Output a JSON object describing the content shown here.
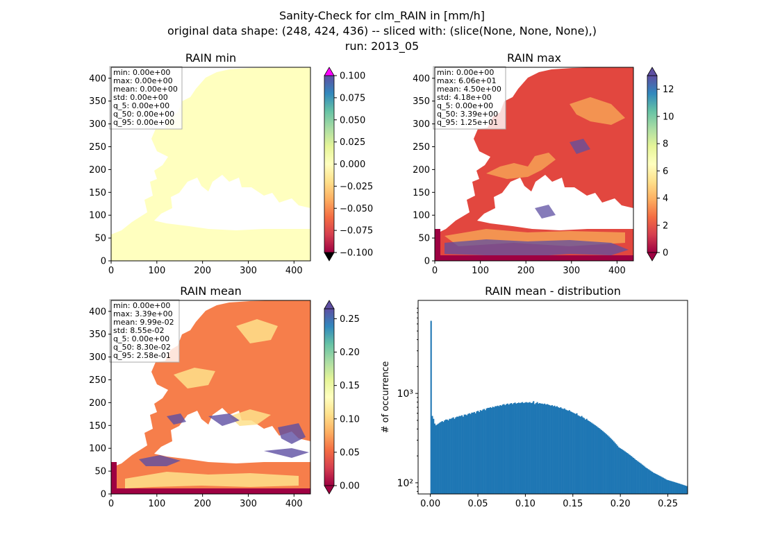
{
  "figure": {
    "suptitle_lines": [
      "Sanity-Check for clm_RAIN in [mm/h]",
      "original data shape: (248, 424, 436) -- sliced with: (slice(None, None, None),)",
      "run: 2013_05"
    ]
  },
  "chart_data": [
    {
      "type": "heatmap",
      "title": "RAIN min",
      "xlim": [
        0,
        436
      ],
      "ylim": [
        0,
        424
      ],
      "x_ticks": [
        "0",
        "100",
        "200",
        "300",
        "400"
      ],
      "y_ticks": [
        "0",
        "50",
        "100",
        "150",
        "200",
        "250",
        "300",
        "350",
        "400"
      ],
      "colormap": "Spectral",
      "colorbar": {
        "min": -0.1,
        "max": 0.1,
        "ticks": [
          "−0.100",
          "−0.075",
          "−0.050",
          "−0.025",
          "0.000",
          "0.025",
          "0.050",
          "0.075",
          "0.100"
        ],
        "extend_max_color": "#ff00ff",
        "extend_min_color": "#000000"
      },
      "stats": [
        "min: 0.00e+00",
        "max: 0.00e+00",
        "mean: 0.00e+00",
        "std: 0.00e+00",
        "q_5: 0.00e+00",
        "q_50: 0.00e+00",
        "q_95: 0.00e+00"
      ]
    },
    {
      "type": "heatmap",
      "title": "RAIN max",
      "xlim": [
        0,
        436
      ],
      "ylim": [
        0,
        424
      ],
      "x_ticks": [
        "0",
        "100",
        "200",
        "300",
        "400"
      ],
      "y_ticks": [
        "0",
        "50",
        "100",
        "150",
        "200",
        "250",
        "300",
        "350",
        "400"
      ],
      "colormap": "Spectral",
      "colorbar": {
        "min": 0,
        "max": 13,
        "ticks": [
          "0",
          "2",
          "4",
          "6",
          "8",
          "10",
          "12"
        ]
      },
      "stats": [
        "min: 0.00e+00",
        "max: 6.06e+01",
        "mean: 4.50e+00",
        "std: 4.18e+00",
        "q_5: 0.00e+00",
        "q_50: 3.39e+00",
        "q_95: 1.25e+01"
      ]
    },
    {
      "type": "heatmap",
      "title": "RAIN mean",
      "xlim": [
        0,
        436
      ],
      "ylim": [
        0,
        424
      ],
      "x_ticks": [
        "0",
        "100",
        "200",
        "300",
        "400"
      ],
      "y_ticks": [
        "0",
        "50",
        "100",
        "150",
        "200",
        "250",
        "300",
        "350",
        "400"
      ],
      "colormap": "Spectral",
      "colorbar": {
        "min": 0,
        "max": 0.265,
        "ticks": [
          "0.00",
          "0.05",
          "0.10",
          "0.15",
          "0.20",
          "0.25"
        ]
      },
      "stats": [
        "min: 0.00e+00",
        "max: 3.39e+00",
        "mean: 9.99e-02",
        "std: 8.55e-02",
        "q_5: 0.00e+00",
        "q_50: 8.30e-02",
        "q_95: 2.58e-01"
      ]
    },
    {
      "type": "bar",
      "title": "RAIN mean - distribution",
      "xlabel": "",
      "ylabel": "# of occurrence",
      "yscale": "log",
      "xlim": [
        -0.0129,
        0.2708
      ],
      "ylim": [
        75,
        11000
      ],
      "x_ticks": [
        "0.00",
        "0.05",
        "0.10",
        "0.15",
        "0.20",
        "0.25"
      ],
      "y_ticks": [
        {
          "value": 100,
          "label": "10²"
        },
        {
          "value": 1000,
          "label": "10³"
        }
      ],
      "bin_start": 0.0,
      "bin_width": 0.0013,
      "color": "#1f77b4",
      "values": [
        6500,
        560,
        520,
        460,
        440,
        450,
        460,
        470,
        480,
        490,
        480,
        500,
        510,
        510,
        500,
        520,
        520,
        530,
        540,
        520,
        540,
        550,
        550,
        560,
        560,
        570,
        550,
        580,
        580,
        570,
        590,
        600,
        590,
        610,
        610,
        620,
        600,
        630,
        640,
        620,
        650,
        640,
        660,
        670,
        650,
        680,
        690,
        690,
        700,
        690,
        710,
        700,
        720,
        720,
        730,
        720,
        740,
        730,
        750,
        760,
        740,
        760,
        770,
        750,
        770,
        780,
        760,
        780,
        790,
        770,
        780,
        790,
        780,
        790,
        800,
        780,
        790,
        800,
        790,
        790,
        800,
        780,
        790,
        820,
        760,
        780,
        800,
        770,
        780,
        770,
        770,
        760,
        770,
        750,
        760,
        750,
        740,
        730,
        740,
        720,
        730,
        710,
        720,
        700,
        690,
        700,
        680,
        670,
        680,
        660,
        650,
        640,
        650,
        630,
        620,
        610,
        600,
        590,
        600,
        570,
        560,
        550,
        560,
        540,
        530,
        510,
        520,
        500,
        490,
        480,
        470,
        460,
        450,
        440,
        430,
        420,
        410,
        400,
        390,
        380,
        370,
        360,
        350,
        340,
        330,
        320,
        310,
        300,
        290,
        280,
        270,
        260,
        250,
        245,
        240,
        235,
        230,
        225,
        220,
        215,
        210,
        205,
        200,
        195,
        190,
        185,
        180,
        176,
        172,
        168,
        164,
        160,
        156,
        152,
        148,
        145,
        142,
        139,
        136,
        133,
        130,
        128,
        126,
        124,
        122,
        120,
        118,
        116,
        114,
        112,
        110,
        108,
        107,
        106,
        105,
        104,
        103,
        102,
        101,
        100,
        99,
        98,
        97,
        96,
        95,
        94,
        93,
        92
      ]
    }
  ]
}
